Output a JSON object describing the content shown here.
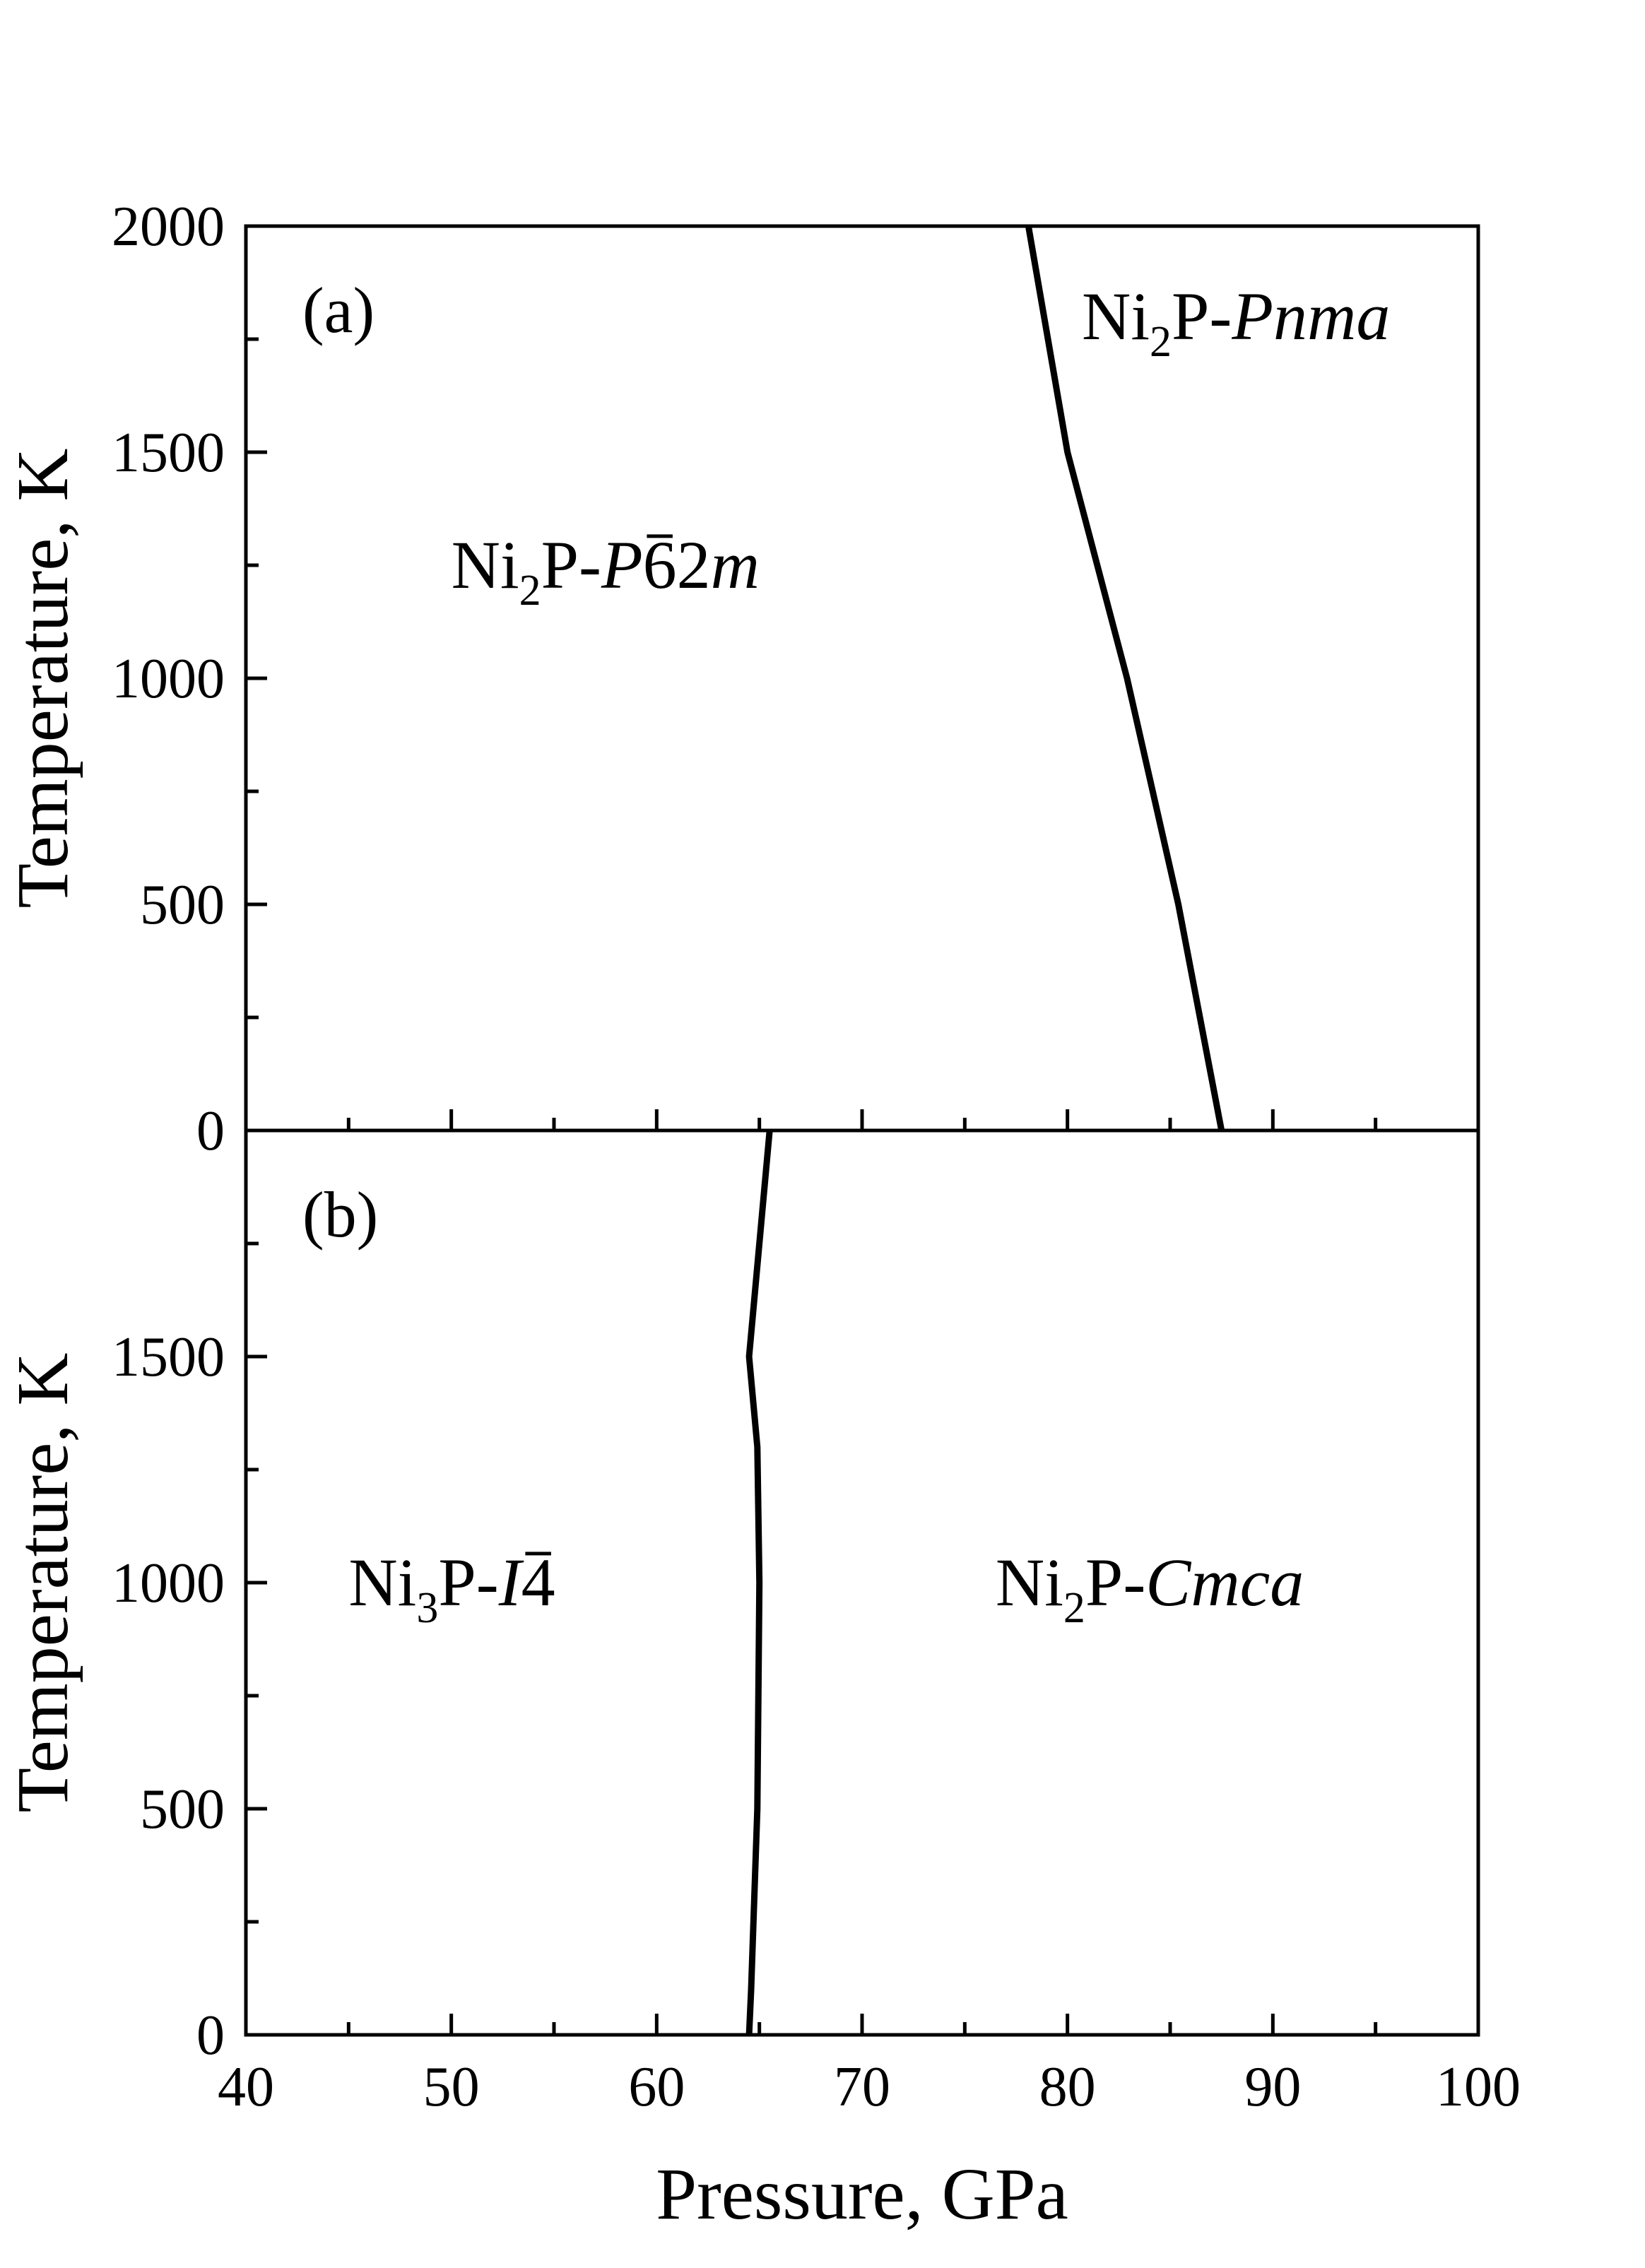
{
  "chart_data": [
    {
      "type": "line",
      "panel_label": "(a)",
      "xlabel": "",
      "ylabel": "Temperature, K",
      "xlim": [
        40,
        100
      ],
      "ylim": [
        0,
        2000
      ],
      "xticks": [],
      "yticks": [
        "0",
        "500",
        "1000",
        "1500",
        "2000"
      ],
      "grid": false,
      "series": [
        {
          "x": [
            87.5,
            85.4,
            82.9,
            80.0,
            78.1
          ],
          "y": [
            0,
            500,
            1000,
            1500,
            2000
          ]
        }
      ],
      "annotations": [
        {
          "id": "ni2p-p62m",
          "base": "Ni",
          "sub": "2",
          "mid": "P-",
          "italic": "P",
          "bar": "6",
          "tail": "2",
          "tail_italic": "m",
          "position": "left",
          "label_x": 50.0,
          "label_y": 1200
        },
        {
          "id": "ni2p-pnma",
          "base": "Ni",
          "sub": "2",
          "mid": "P-",
          "italic": "Pnma",
          "position": "upper-right",
          "label_x": 80.7,
          "label_y": 1750
        }
      ]
    },
    {
      "type": "line",
      "panel_label": "(b)",
      "xlabel": "Pressure, GPa",
      "ylabel": "Temperature, K",
      "xlim": [
        40,
        100
      ],
      "ylim": [
        0,
        2000
      ],
      "xticks": [
        "40",
        "50",
        "60",
        "70",
        "80",
        "90",
        "100"
      ],
      "yticks": [
        "0",
        "500",
        "1000",
        "1500"
      ],
      "grid": false,
      "series": [
        {
          "x": [
            64.5,
            64.6,
            64.9,
            65.0,
            64.9,
            64.5,
            65.5
          ],
          "y": [
            0,
            100,
            500,
            1000,
            1300,
            1500,
            2000
          ]
        }
      ],
      "annotations": [
        {
          "id": "ni3p-i4",
          "base": "Ni",
          "sub": "3",
          "mid": "P-",
          "italic": "I",
          "bar": "4",
          "position": "left",
          "label_x": 45.0,
          "label_y": 950
        },
        {
          "id": "ni2p-cmca",
          "base": "Ni",
          "sub": "2",
          "mid": "P-",
          "italic": "Cmca",
          "position": "right",
          "label_x": 76.5,
          "label_y": 950
        }
      ]
    }
  ]
}
